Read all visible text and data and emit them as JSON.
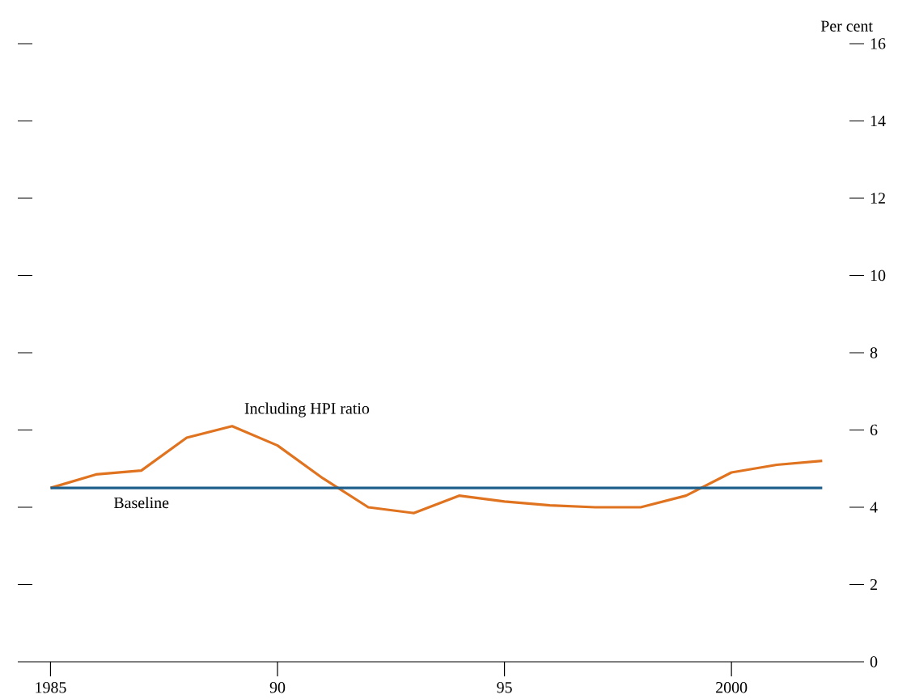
{
  "chart_data": {
    "type": "line",
    "ylabel": "Per cent",
    "x": [
      1985,
      1986,
      1987,
      1988,
      1989,
      1990,
      1991,
      1992,
      1993,
      1994,
      1995,
      1996,
      1997,
      1998,
      1999,
      2000,
      2001,
      2002
    ],
    "series": [
      {
        "name": "Including HPI ratio",
        "color": "#e0731f",
        "values": [
          4.5,
          4.85,
          4.95,
          5.8,
          6.1,
          5.6,
          4.75,
          4.0,
          3.85,
          4.3,
          4.15,
          4.05,
          4.0,
          4.0,
          4.3,
          4.9,
          5.1,
          5.2
        ]
      },
      {
        "name": "Baseline",
        "color": "#1f5f8b",
        "values": [
          4.5,
          4.5,
          4.5,
          4.5,
          4.5,
          4.5,
          4.5,
          4.5,
          4.5,
          4.5,
          4.5,
          4.5,
          4.5,
          4.5,
          4.5,
          4.5,
          4.5,
          4.5
        ]
      }
    ],
    "xlim": [
      1984.6,
      2002.6
    ],
    "ylim": [
      0,
      16
    ],
    "xticks": [
      1985,
      {
        "value": 1990,
        "label": "90"
      },
      {
        "value": 1995,
        "label": "95"
      },
      2000
    ],
    "yticks": [
      0,
      2,
      4,
      6,
      8,
      10,
      12,
      14,
      16
    ],
    "grid": false,
    "legend": false,
    "marker": "none",
    "line_style": "solid"
  }
}
